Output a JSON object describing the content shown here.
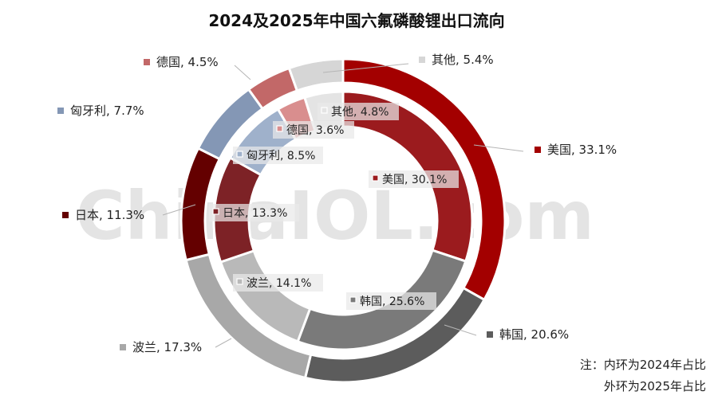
{
  "chart_data": {
    "type": "pie",
    "title": "2024及2025年中国六氟磷酸锂出口流向",
    "watermark": "ChinaIOL.com",
    "series": [
      {
        "name": "内环为2024年占比",
        "ring": "inner",
        "slices": [
          {
            "label": "美国",
            "value": 30.1,
            "display": "美国, 30.1%",
            "color": "#9b1b1e"
          },
          {
            "label": "韩国",
            "value": 25.6,
            "display": "韩国, 25.6%",
            "color": "#7a7a7a"
          },
          {
            "label": "波兰",
            "value": 14.1,
            "display": "波兰, 14.1%",
            "color": "#b9b9b9"
          },
          {
            "label": "日本",
            "value": 13.3,
            "display": "日本, 13.3%",
            "color": "#7d2226"
          },
          {
            "label": "匈牙利",
            "value": 8.5,
            "display": "匈牙利, 8.5%",
            "color": "#9fb1cb"
          },
          {
            "label": "德国",
            "value": 3.6,
            "display": "德国, 3.6%",
            "color": "#d98e8e"
          },
          {
            "label": "其他",
            "value": 4.8,
            "display": "其他, 4.8%",
            "color": "#e4e4e4"
          }
        ]
      },
      {
        "name": "外环为2025年占比",
        "ring": "outer",
        "slices": [
          {
            "label": "美国",
            "value": 33.1,
            "display": "美国, 33.1%",
            "color": "#a30000"
          },
          {
            "label": "韩国",
            "value": 20.6,
            "display": "韩国, 20.6%",
            "color": "#5c5c5c"
          },
          {
            "label": "波兰",
            "value": 17.3,
            "display": "波兰, 17.3%",
            "color": "#a8a8a8"
          },
          {
            "label": "日本",
            "value": 11.3,
            "display": "日本, 11.3%",
            "color": "#640000"
          },
          {
            "label": "匈牙利",
            "value": 7.7,
            "display": "匈牙利, 7.7%",
            "color": "#8497b5"
          },
          {
            "label": "德国",
            "value": 4.5,
            "display": "德国, 4.5%",
            "color": "#c26868"
          },
          {
            "label": "其他",
            "value": 5.4,
            "display": "其他, 5.4%",
            "color": "#d6d6d6"
          }
        ]
      }
    ],
    "notes": [
      "注：内环为2024年占比",
      "外环为2025年占比"
    ]
  }
}
